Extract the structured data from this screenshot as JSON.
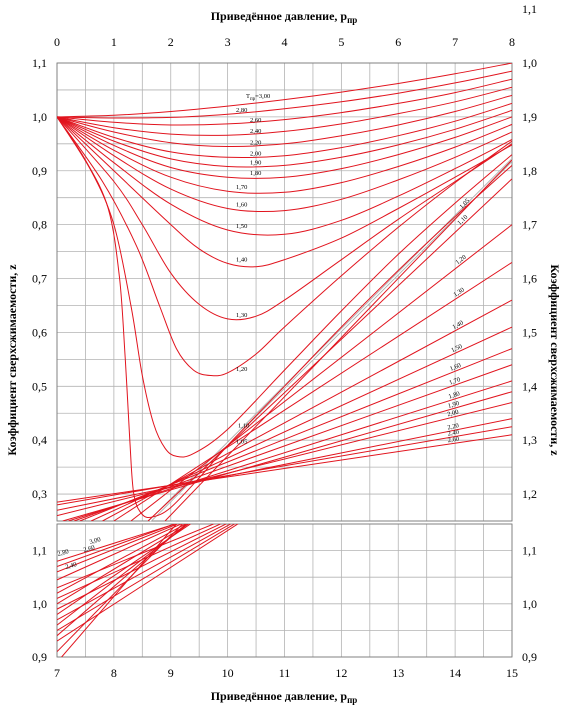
{
  "chart_data": {
    "type": "line",
    "title_top": "Приведённое давление, p",
    "title_top_sub": "пр",
    "xlabel": "Приведённое давление, p",
    "xlabel_sub": "пр",
    "ylabel": "Коэффициент сверхсжимаемости, z",
    "tr_label": "T",
    "tr_sub": "пр",
    "tr_eq": "=3,00",
    "upper_panel": {
      "xlim": [
        0,
        8
      ],
      "ylim_left": [
        0.25,
        1.1
      ],
      "ylim_right": [
        1.15,
        2.1
      ],
      "x_ticks": [
        "0",
        "1",
        "2",
        "3",
        "4",
        "5",
        "6",
        "7",
        "8"
      ],
      "y_ticks_left": [
        "0,3",
        "0,4",
        "0,5",
        "0,6",
        "0,7",
        "0,8",
        "0,9",
        "1,0",
        "1,1"
      ],
      "y_ticks_right": [
        "1,2",
        "1,3",
        "1,4",
        "1,5",
        "1,6",
        "1,7",
        "1,8",
        "1,9",
        "1,0",
        "1,1"
      ],
      "series_low_pr": [
        {
          "name": "3,00",
          "points": [
            [
              0,
              1.0
            ],
            [
              1,
              1.003
            ],
            [
              2,
              1.01
            ],
            [
              3,
              1.02
            ],
            [
              4,
              1.032
            ],
            [
              5,
              1.046
            ],
            [
              6,
              1.062
            ],
            [
              7,
              1.08
            ],
            [
              8,
              1.1
            ]
          ]
        },
        {
          "name": "2,80",
          "points": [
            [
              0,
              1.0
            ],
            [
              1,
              0.998
            ],
            [
              2,
              0.999
            ],
            [
              3,
              1.005
            ],
            [
              4,
              1.015
            ],
            [
              5,
              1.028
            ],
            [
              6,
              1.044
            ],
            [
              7,
              1.063
            ],
            [
              8,
              1.085
            ]
          ]
        },
        {
          "name": "2,60",
          "points": [
            [
              0,
              1.0
            ],
            [
              1,
              0.99
            ],
            [
              2,
              0.985
            ],
            [
              3,
              0.987
            ],
            [
              4,
              0.995
            ],
            [
              5,
              1.008
            ],
            [
              6,
              1.025
            ],
            [
              7,
              1.045
            ],
            [
              8,
              1.07
            ]
          ]
        },
        {
          "name": "2,40",
          "points": [
            [
              0,
              1.0
            ],
            [
              1,
              0.98
            ],
            [
              2,
              0.968
            ],
            [
              3,
              0.966
            ],
            [
              4,
              0.973
            ],
            [
              5,
              0.987
            ],
            [
              6,
              1.006
            ],
            [
              7,
              1.028
            ],
            [
              8,
              1.055
            ]
          ]
        },
        {
          "name": "2,20",
          "points": [
            [
              0,
              1.0
            ],
            [
              1,
              0.972
            ],
            [
              2,
              0.952
            ],
            [
              3,
              0.945
            ],
            [
              4,
              0.95
            ],
            [
              5,
              0.965
            ],
            [
              6,
              0.985
            ],
            [
              7,
              1.01
            ],
            [
              8,
              1.04
            ]
          ]
        },
        {
          "name": "2,00",
          "points": [
            [
              0,
              1.0
            ],
            [
              1,
              0.962
            ],
            [
              2,
              0.935
            ],
            [
              3,
              0.925
            ],
            [
              4,
              0.928
            ],
            [
              5,
              0.943
            ],
            [
              6,
              0.965
            ],
            [
              7,
              0.992
            ],
            [
              8,
              1.025
            ]
          ]
        },
        {
          "name": "1,90",
          "points": [
            [
              0,
              1.0
            ],
            [
              1,
              0.955
            ],
            [
              2,
              0.922
            ],
            [
              3,
              0.908
            ],
            [
              4,
              0.91
            ],
            [
              5,
              0.925
            ],
            [
              6,
              0.948
            ],
            [
              7,
              0.977
            ],
            [
              8,
              1.012
            ]
          ]
        },
        {
          "name": "1,80",
          "points": [
            [
              0,
              1.0
            ],
            [
              1,
              0.947
            ],
            [
              2,
              0.906
            ],
            [
              3,
              0.888
            ],
            [
              4,
              0.888
            ],
            [
              5,
              0.904
            ],
            [
              6,
              0.93
            ],
            [
              7,
              0.962
            ],
            [
              8,
              1.0
            ]
          ]
        },
        {
          "name": "1,70",
          "points": [
            [
              0,
              1.0
            ],
            [
              1,
              0.938
            ],
            [
              2,
              0.888
            ],
            [
              3,
              0.862
            ],
            [
              4,
              0.86
            ],
            [
              5,
              0.878
            ],
            [
              6,
              0.908
            ],
            [
              7,
              0.944
            ],
            [
              8,
              0.986
            ]
          ]
        },
        {
          "name": "1,60",
          "points": [
            [
              0,
              1.0
            ],
            [
              1,
              0.928
            ],
            [
              2,
              0.866
            ],
            [
              3,
              0.83
            ],
            [
              4,
              0.826
            ],
            [
              5,
              0.847
            ],
            [
              6,
              0.883
            ],
            [
              7,
              0.925
            ],
            [
              8,
              0.972
            ]
          ]
        },
        {
          "name": "1,50",
          "points": [
            [
              0,
              1.0
            ],
            [
              1,
              0.915
            ],
            [
              2,
              0.838
            ],
            [
              3,
              0.79
            ],
            [
              4,
              0.782
            ],
            [
              5,
              0.808
            ],
            [
              6,
              0.853
            ],
            [
              7,
              0.904
            ],
            [
              8,
              0.958
            ]
          ]
        },
        {
          "name": "1,40",
          "points": [
            [
              0,
              1.0
            ],
            [
              1,
              0.9
            ],
            [
              2,
              0.8
            ],
            [
              2.5,
              0.755
            ],
            [
              3,
              0.728
            ],
            [
              3.5,
              0.722
            ],
            [
              4,
              0.735
            ],
            [
              5,
              0.775
            ],
            [
              6,
              0.83
            ],
            [
              7,
              0.888
            ],
            [
              8,
              0.948
            ]
          ]
        },
        {
          "name": "1,30",
          "points": [
            [
              0,
              1.0
            ],
            [
              1,
              0.88
            ],
            [
              1.5,
              0.8
            ],
            [
              2,
              0.71
            ],
            [
              2.5,
              0.652
            ],
            [
              3,
              0.625
            ],
            [
              3.5,
              0.63
            ],
            [
              4,
              0.66
            ],
            [
              5,
              0.735
            ],
            [
              6,
              0.81
            ],
            [
              7,
              0.88
            ],
            [
              8,
              0.95
            ]
          ]
        },
        {
          "name": "1,20",
          "points": [
            [
              0,
              1.0
            ],
            [
              0.8,
              0.88
            ],
            [
              1.4,
              0.76
            ],
            [
              1.8,
              0.65
            ],
            [
              2.1,
              0.57
            ],
            [
              2.4,
              0.53
            ],
            [
              2.7,
              0.52
            ],
            [
              3,
              0.525
            ],
            [
              3.5,
              0.56
            ],
            [
              4,
              0.61
            ],
            [
              5,
              0.705
            ],
            [
              6,
              0.795
            ],
            [
              7,
              0.878
            ],
            [
              8,
              0.955
            ]
          ]
        },
        {
          "name": "1,10",
          "points": [
            [
              0,
              1.0
            ],
            [
              0.6,
              0.9
            ],
            [
              1.0,
              0.8
            ],
            [
              1.3,
              0.65
            ],
            [
              1.5,
              0.52
            ],
            [
              1.7,
              0.43
            ],
            [
              1.9,
              0.385
            ],
            [
              2.1,
              0.37
            ],
            [
              2.4,
              0.375
            ],
            [
              3,
              0.42
            ],
            [
              4,
              0.53
            ],
            [
              5,
              0.64
            ],
            [
              6,
              0.745
            ],
            [
              7,
              0.84
            ],
            [
              8,
              0.93
            ]
          ]
        },
        {
          "name": "1,05",
          "points": [
            [
              0,
              1.0
            ],
            [
              0.5,
              0.92
            ],
            [
              0.9,
              0.83
            ],
            [
              1.1,
              0.7
            ],
            [
              1.2,
              0.55
            ],
            [
              1.28,
              0.4
            ],
            [
              1.35,
              0.3
            ],
            [
              1.5,
              0.262
            ],
            [
              1.7,
              0.258
            ],
            [
              2,
              0.275
            ],
            [
              2.5,
              0.33
            ],
            [
              3,
              0.39
            ],
            [
              4,
              0.5
            ],
            [
              5,
              0.61
            ],
            [
              6,
              0.715
            ],
            [
              7,
              0.815
            ],
            [
              8,
              0.91
            ]
          ]
        }
      ],
      "series_high_pr": [
        {
          "name": "1,05",
          "points": [
            [
              1.9,
              0.25
            ],
            [
              8,
              0.92
            ]
          ]
        },
        {
          "name": "1,10",
          "points": [
            [
              1.6,
              0.25
            ],
            [
              8,
              0.885
            ]
          ]
        },
        {
          "name": "1,20",
          "points": [
            [
              1.3,
              0.25
            ],
            [
              8,
              0.8
            ]
          ]
        },
        {
          "name": "1,30",
          "points": [
            [
              1.0,
              0.25
            ],
            [
              8,
              0.73
            ]
          ]
        },
        {
          "name": "1,40",
          "points": [
            [
              0.8,
              0.25
            ],
            [
              8,
              0.66
            ]
          ]
        },
        {
          "name": "1,50",
          "points": [
            [
              0.6,
              0.25
            ],
            [
              8,
              0.61
            ]
          ]
        },
        {
          "name": "1,60",
          "points": [
            [
              0.4,
              0.25
            ],
            [
              8,
              0.57
            ]
          ]
        },
        {
          "name": "1,70",
          "points": [
            [
              0.3,
              0.25
            ],
            [
              8,
              0.54
            ]
          ]
        },
        {
          "name": "1,80",
          "points": [
            [
              0.2,
              0.25
            ],
            [
              8,
              0.51
            ]
          ]
        },
        {
          "name": "1,90",
          "points": [
            [
              0.1,
              0.25
            ],
            [
              8,
              0.49
            ]
          ]
        },
        {
          "name": "2,00",
          "points": [
            [
              0.0,
              0.26
            ],
            [
              8,
              0.47
            ]
          ]
        },
        {
          "name": "2,20",
          "points": [
            [
              0.0,
              0.27
            ],
            [
              8,
              0.44
            ]
          ]
        },
        {
          "name": "2,40",
          "points": [
            [
              0.0,
              0.28
            ],
            [
              8,
              0.425
            ]
          ]
        },
        {
          "name": "2,60",
          "points": [
            [
              0.0,
              0.285
            ],
            [
              8,
              0.41
            ]
          ]
        }
      ]
    },
    "lower_panel": {
      "xlim": [
        7,
        15
      ],
      "ylim_left": [
        0.9,
        1.15
      ],
      "x_ticks": [
        "7",
        "8",
        "9",
        "10",
        "11",
        "12",
        "13",
        "14",
        "15"
      ],
      "y_ticks_left": [
        "0,9",
        "1,0",
        "1,1"
      ],
      "y_ticks_right": [
        "0,9",
        "1,0",
        "1,1"
      ],
      "series": [
        {
          "name": "3,00",
          "points": [
            [
              7,
              1.08
            ],
            [
              15,
              1.35
            ]
          ]
        },
        {
          "name": "2,80",
          "points": [
            [
              7,
              1.07
            ],
            [
              15,
              1.38
            ]
          ]
        },
        {
          "name": "2,60",
          "points": [
            [
              7,
              1.06
            ],
            [
              15,
              1.4
            ]
          ]
        },
        {
          "name": "2,40",
          "points": [
            [
              7,
              1.045
            ],
            [
              15,
              1.43
            ]
          ]
        },
        {
          "name": "2,20",
          "points": [
            [
              7,
              1.02
            ],
            [
              15,
              1.48
            ]
          ]
        },
        {
          "name": "2,00",
          "points": [
            [
              7,
              1.0
            ],
            [
              15,
              1.52
            ]
          ]
        },
        {
          "name": "1,80",
          "points": [
            [
              7,
              0.98
            ],
            [
              15,
              1.56
            ]
          ]
        },
        {
          "name": "1,60",
          "points": [
            [
              7,
              0.96
            ],
            [
              15,
              1.62
            ]
          ]
        },
        {
          "name": "1,40",
          "points": [
            [
              7,
              0.94
            ],
            [
              15,
              1.68
            ]
          ]
        },
        {
          "name": "1,20",
          "points": [
            [
              7,
              0.91
            ],
            [
              15,
              1.78
            ]
          ]
        },
        {
          "name": "1,10",
          "points": [
            [
              7,
              0.89
            ],
            [
              15,
              1.88
            ]
          ]
        }
      ]
    },
    "grid": true
  }
}
